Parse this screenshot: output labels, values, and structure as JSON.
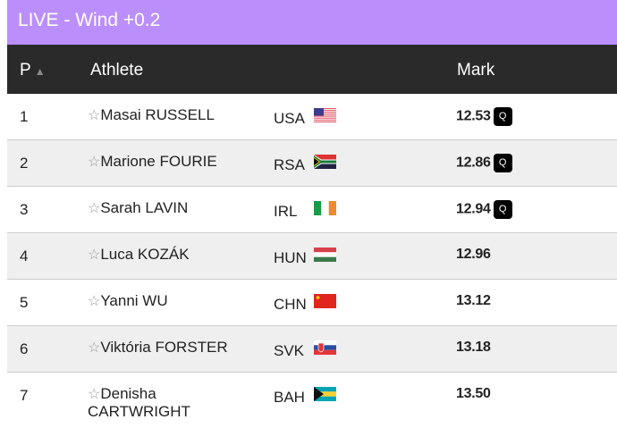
{
  "banner": {
    "title": "LIVE - Wind +0.2",
    "color": "#bb8ffb"
  },
  "columns": {
    "position": "P",
    "sort_icon": "▲",
    "athlete": "Athlete",
    "mark": "Mark"
  },
  "rows": [
    {
      "pos": "1",
      "name": "Masai RUSSELL",
      "country": "USA",
      "mark": "12.53",
      "q": "Q"
    },
    {
      "pos": "2",
      "name": "Marione FOURIE",
      "country": "RSA",
      "mark": "12.86",
      "q": "Q"
    },
    {
      "pos": "3",
      "name": "Sarah LAVIN",
      "country": "IRL",
      "mark": "12.94",
      "q": "Q"
    },
    {
      "pos": "4",
      "name": "Luca KOZÁK",
      "country": "HUN",
      "mark": "12.96",
      "q": ""
    },
    {
      "pos": "5",
      "name": "Yanni WU",
      "country": "CHN",
      "mark": "13.12",
      "q": ""
    },
    {
      "pos": "6",
      "name": "Viktória FORSTER",
      "country": "SVK",
      "mark": "13.18",
      "q": ""
    },
    {
      "pos": "7",
      "name": "Denisha CARTWRIGHT",
      "country": "BAH",
      "mark": "13.50",
      "q": ""
    }
  ]
}
